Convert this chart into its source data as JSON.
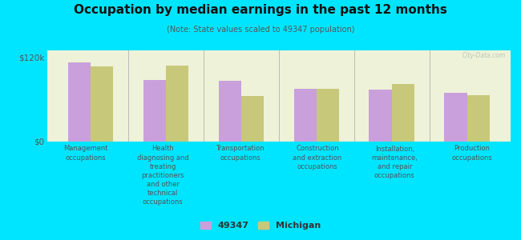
{
  "title": "Occupation by median earnings in the past 12 months",
  "subtitle": "(Note: State values scaled to 49347 population)",
  "categories": [
    "Management\noccupations",
    "Health\ndiagnosing and\ntreating\npractitioners\nand other\ntechnical\noccupations",
    "Transportation\noccupations",
    "Construction\nand extraction\noccupations",
    "Installation,\nmaintenance,\nand repair\noccupations",
    "Production\noccupations"
  ],
  "values_49347": [
    113000,
    88000,
    87000,
    75000,
    74000,
    70000
  ],
  "values_michigan": [
    107000,
    108000,
    65000,
    75000,
    82000,
    66000
  ],
  "color_49347": "#c9a0dc",
  "color_michigan": "#c8c87a",
  "background_color": "#00e5ff",
  "plot_bg_color": "#eef2d8",
  "ylim": [
    0,
    130000
  ],
  "yticks": [
    0,
    120000
  ],
  "ytick_labels": [
    "$0",
    "$120k"
  ],
  "legend_label_49347": "49347",
  "legend_label_michigan": "Michigan",
  "watermark": "City-Data.com"
}
